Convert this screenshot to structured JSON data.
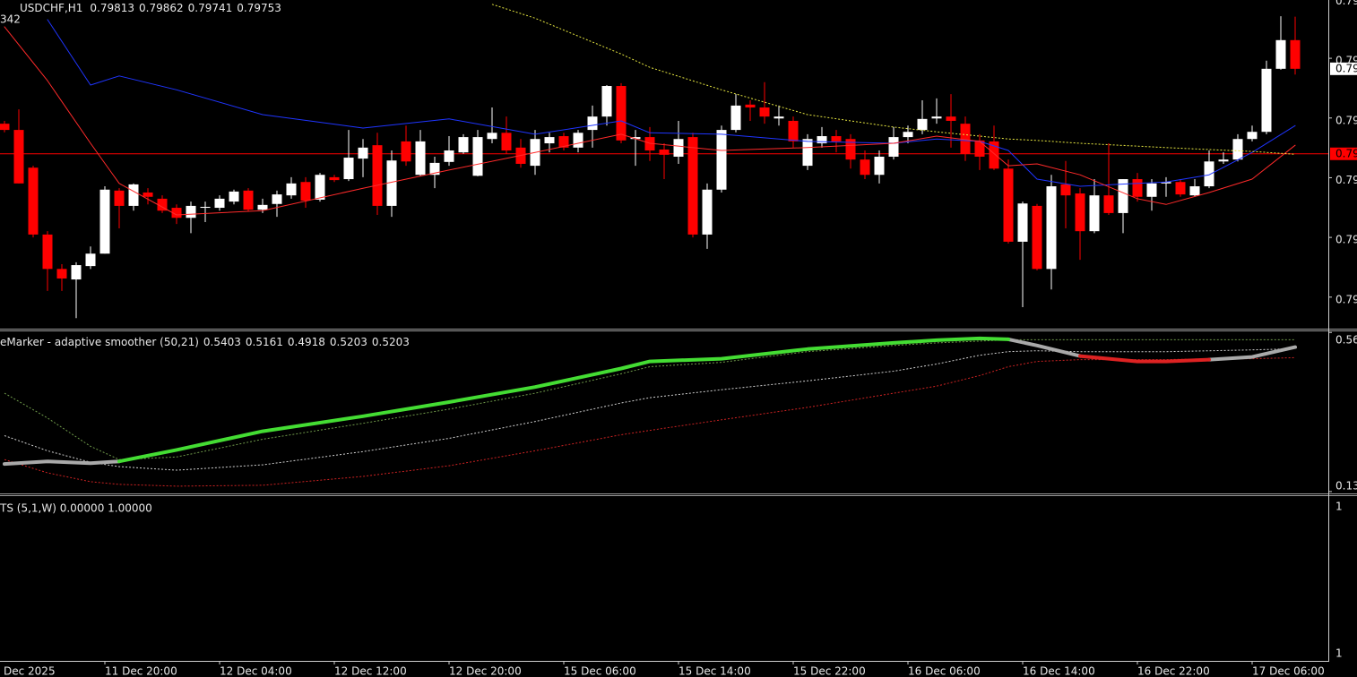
{
  "chart_data": [
    {
      "type": "candlestick",
      "title": "USDCHF,H1",
      "subtitle": "342",
      "open": [
        0.79638,
        0.79625,
        0.79546,
        0.79406,
        0.79334,
        0.79312,
        0.7934,
        0.79366,
        0.79498,
        0.79466,
        0.79494,
        0.79481,
        0.79462,
        0.79441,
        0.79462,
        0.79462,
        0.79475,
        0.79498,
        0.79458,
        0.7947,
        0.79488,
        0.79516,
        0.79479,
        0.79526,
        0.79522,
        0.79565,
        0.79593,
        0.79466,
        0.79601,
        0.79531,
        0.79531,
        0.79558,
        0.79578,
        0.79529,
        0.79606,
        0.79619,
        0.79588,
        0.7955,
        0.79597,
        0.79612,
        0.79588,
        0.79625,
        0.79653,
        0.79717,
        0.79606,
        0.7961,
        0.79584,
        0.79569,
        0.7961,
        0.79406,
        0.795,
        0.79625,
        0.79678,
        0.79672,
        0.79649,
        0.79644,
        0.7955,
        0.79597,
        0.79612,
        0.79606,
        0.79563,
        0.79531,
        0.79569,
        0.7961,
        0.79625,
        0.79649,
        0.79653,
        0.79638,
        0.79603,
        0.79601,
        0.79544,
        0.79391,
        0.79466,
        0.79334,
        0.79511,
        0.79492,
        0.79413,
        0.79488,
        0.79451,
        0.79522,
        0.79485,
        0.79513,
        0.79516,
        0.79488,
        0.79507,
        0.79559,
        0.79563,
        0.79606,
        0.79621,
        0.79753,
        0.79813
      ],
      "high": [
        0.79644,
        0.79668,
        0.7955,
        0.79413,
        0.79344,
        0.79348,
        0.79381,
        0.79507,
        0.79503,
        0.79513,
        0.79503,
        0.79488,
        0.79469,
        0.79475,
        0.79475,
        0.79488,
        0.795,
        0.79503,
        0.79481,
        0.79498,
        0.79526,
        0.79526,
        0.79535,
        0.79531,
        0.79625,
        0.79606,
        0.79619,
        0.79582,
        0.79634,
        0.79625,
        0.79569,
        0.79612,
        0.79616,
        0.79625,
        0.79672,
        0.79653,
        0.79606,
        0.79625,
        0.79619,
        0.79619,
        0.79625,
        0.79676,
        0.79719,
        0.79723,
        0.79625,
        0.79631,
        0.79597,
        0.79644,
        0.79619,
        0.79513,
        0.79634,
        0.797,
        0.79687,
        0.79725,
        0.79676,
        0.79653,
        0.79616,
        0.79631,
        0.79625,
        0.79616,
        0.79582,
        0.79582,
        0.79631,
        0.79634,
        0.79687,
        0.79691,
        0.797,
        0.79653,
        0.79616,
        0.79634,
        0.79563,
        0.79475,
        0.7947,
        0.79531,
        0.7956,
        0.79503,
        0.79522,
        0.79597,
        0.79522,
        0.79535,
        0.79522,
        0.79526,
        0.79522,
        0.79522,
        0.79582,
        0.79578,
        0.79616,
        0.79634,
        0.7977,
        0.79863,
        0.79862
      ],
      "low": [
        0.7962,
        0.79513,
        0.794,
        0.79288,
        0.79288,
        0.79231,
        0.79334,
        0.79366,
        0.79419,
        0.79456,
        0.79469,
        0.79451,
        0.79428,
        0.79409,
        0.79432,
        0.79456,
        0.79469,
        0.79454,
        0.79451,
        0.79443,
        0.79481,
        0.79462,
        0.79475,
        0.79516,
        0.79518,
        0.79526,
        0.79447,
        0.79443,
        0.7955,
        0.79528,
        0.79503,
        0.7955,
        0.79575,
        0.79528,
        0.79597,
        0.79575,
        0.79546,
        0.79531,
        0.79578,
        0.79582,
        0.79578,
        0.79588,
        0.79634,
        0.79597,
        0.7955,
        0.7956,
        0.79522,
        0.79554,
        0.794,
        0.79376,
        0.79494,
        0.7962,
        0.79644,
        0.79638,
        0.79634,
        0.79588,
        0.79541,
        0.79588,
        0.79578,
        0.79544,
        0.79522,
        0.79513,
        0.79563,
        0.79597,
        0.79616,
        0.79638,
        0.79588,
        0.7956,
        0.79541,
        0.79541,
        0.79387,
        0.79254,
        0.79331,
        0.79291,
        0.79419,
        0.79353,
        0.79409,
        0.79447,
        0.79409,
        0.79475,
        0.79456,
        0.79485,
        0.79485,
        0.79485,
        0.79503,
        0.79554,
        0.79559,
        0.79601,
        0.79616,
        0.79751,
        0.79741
      ],
      "close": [
        0.79625,
        0.79513,
        0.79406,
        0.79334,
        0.79314,
        0.79342,
        0.79366,
        0.795,
        0.79466,
        0.79511,
        0.79485,
        0.79456,
        0.79441,
        0.79466,
        0.79464,
        0.79481,
        0.79496,
        0.79458,
        0.79468,
        0.7949,
        0.79513,
        0.79477,
        0.79531,
        0.7952,
        0.79567,
        0.79588,
        0.79466,
        0.79561,
        0.79559,
        0.79601,
        0.79556,
        0.79582,
        0.7961,
        0.7961,
        0.79619,
        0.79582,
        0.79554,
        0.79606,
        0.7961,
        0.79588,
        0.79619,
        0.79653,
        0.79717,
        0.79603,
        0.7961,
        0.79582,
        0.79573,
        0.79606,
        0.79406,
        0.795,
        0.79625,
        0.79676,
        0.79672,
        0.79653,
        0.79653,
        0.79601,
        0.79606,
        0.79612,
        0.79601,
        0.79563,
        0.79531,
        0.79569,
        0.7961,
        0.79621,
        0.79648,
        0.79653,
        0.79644,
        0.79575,
        0.79569,
        0.79544,
        0.79391,
        0.79471,
        0.79334,
        0.79507,
        0.79488,
        0.79413,
        0.79488,
        0.79451,
        0.79522,
        0.79485,
        0.79513,
        0.79516,
        0.7949,
        0.79507,
        0.79559,
        0.79563,
        0.79606,
        0.79621,
        0.79753,
        0.79813,
        0.79753
      ],
      "up_color": "#ffffff",
      "down_color": "#ff0000",
      "xlim": [
        -0.3125,
        92.3125
      ],
      "xticks": [
        {
          "value": -1,
          "label": "Dec 2025"
        },
        {
          "value": 7,
          "label": "11 Dec 20:00"
        },
        {
          "value": 15,
          "label": "12 Dec 04:00"
        },
        {
          "value": 23,
          "label": "12 Dec 12:00"
        },
        {
          "value": 31,
          "label": "12 Dec 20:00"
        },
        {
          "value": 39,
          "label": "15 Dec 06:00"
        },
        {
          "value": 47,
          "label": "15 Dec 14:00"
        },
        {
          "value": 55,
          "label": "15 Dec 22:00"
        },
        {
          "value": 63,
          "label": "16 Dec 06:00"
        },
        {
          "value": 71,
          "label": "16 Dec 14:00"
        },
        {
          "value": 79,
          "label": "16 Dec 22:00"
        },
        {
          "value": 87,
          "label": "17 Dec 06:00"
        }
      ],
      "ylim": [
        0.79209,
        0.79897
      ],
      "yticks": [
        {
          "value": 0.799,
          "label": "0.79"
        },
        {
          "value": 0.79775,
          "label": "0.79"
        },
        {
          "value": 0.7965,
          "label": "0.79"
        },
        {
          "value": 0.79525,
          "label": "0.79"
        },
        {
          "value": 0.794,
          "label": "0.79"
        },
        {
          "value": 0.79275,
          "label": "0.79"
        }
      ],
      "hline": 0.79575,
      "hline_color": "#ff0000",
      "series": [
        {
          "color": "#1f35ff",
          "style": "solid",
          "width": 1,
          "x": [
            3,
            6,
            8,
            12,
            18,
            25,
            31,
            37,
            43,
            45,
            50,
            56,
            62,
            65,
            68,
            70,
            72,
            75,
            79,
            81,
            84,
            87,
            90
          ],
          "values": [
            0.79856,
            0.79719,
            0.79738,
            0.79709,
            0.79657,
            0.79629,
            0.79648,
            0.79616,
            0.79644,
            0.79619,
            0.79616,
            0.79601,
            0.79597,
            0.79606,
            0.79601,
            0.79582,
            0.79522,
            0.79507,
            0.79513,
            0.79516,
            0.79531,
            0.79578,
            0.79634
          ]
        },
        {
          "color": "#ff2a2a",
          "style": "solid",
          "width": 1,
          "x": [
            0,
            3,
            6,
            8,
            12,
            18,
            25,
            31,
            37,
            43,
            45,
            50,
            56,
            62,
            65,
            68,
            70,
            72,
            75,
            79,
            81,
            84,
            87,
            90
          ],
          "values": [
            0.79841,
            0.79728,
            0.79597,
            0.79513,
            0.79447,
            0.79456,
            0.79503,
            0.79541,
            0.79578,
            0.79616,
            0.79597,
            0.79582,
            0.79588,
            0.79597,
            0.79612,
            0.79601,
            0.7955,
            0.79554,
            0.79531,
            0.79481,
            0.79469,
            0.79494,
            0.79522,
            0.79593
          ]
        },
        {
          "color": "#e6e640",
          "style": "dotted",
          "width": 1,
          "x": [
            34,
            37,
            43,
            45,
            50,
            56,
            62,
            65,
            68,
            70,
            72,
            75,
            79,
            81,
            84,
            87,
            90
          ],
          "values": [
            0.79888,
            0.79859,
            0.79784,
            0.79756,
            0.79709,
            0.79657,
            0.79631,
            0.79621,
            0.79612,
            0.79606,
            0.79603,
            0.79597,
            0.79591,
            0.79588,
            0.79584,
            0.7958,
            0.79574
          ]
        }
      ]
    },
    {
      "type": "line",
      "title": "eMarker - adaptive smoother (50,21)",
      "xlim": [
        -0.3125,
        92.3125
      ],
      "ylim": [
        0.125,
        0.563
      ],
      "yticks": [
        0.56,
        0.13
      ],
      "series": [
        {
          "color": "#6f9a4a",
          "style": "dotted",
          "width": 1,
          "x": [
            0,
            3,
            6,
            8,
            12,
            18,
            25,
            31,
            37,
            43,
            45,
            50,
            56,
            62,
            65,
            68,
            70,
            72,
            75,
            79,
            81,
            84,
            87,
            90
          ],
          "values": [
            0.3957,
            0.3288,
            0.2523,
            0.2164,
            0.2236,
            0.2714,
            0.3144,
            0.3527,
            0.3957,
            0.4483,
            0.4674,
            0.4793,
            0.508,
            0.5248,
            0.5319,
            0.5367,
            0.5403,
            0.5403,
            0.5403,
            0.5403,
            0.5403,
            0.5403,
            0.5403,
            0.5403
          ]
        },
        {
          "color": "#cfcfcf",
          "style": "dotted",
          "width": 1,
          "x": [
            0,
            3,
            6,
            8,
            12,
            18,
            25,
            31,
            37,
            43,
            45,
            50,
            56,
            62,
            65,
            68,
            70,
            72,
            75,
            79,
            81,
            84,
            87,
            90
          ],
          "values": [
            0.281,
            0.2403,
            0.2093,
            0.1973,
            0.1878,
            0.2021,
            0.238,
            0.2738,
            0.3192,
            0.3694,
            0.3837,
            0.4053,
            0.4292,
            0.4554,
            0.4746,
            0.4985,
            0.508,
            0.5104,
            0.508,
            0.508,
            0.508,
            0.5104,
            0.5128,
            0.5161
          ]
        },
        {
          "color": "#cc2222",
          "style": "dotted",
          "width": 1,
          "x": [
            0,
            3,
            6,
            8,
            12,
            18,
            25,
            31,
            37,
            43,
            45,
            50,
            56,
            62,
            65,
            68,
            70,
            72,
            75,
            79,
            81,
            84,
            87,
            90
          ],
          "values": [
            0.2164,
            0.1806,
            0.1567,
            0.1495,
            0.1447,
            0.1471,
            0.171,
            0.1997,
            0.2403,
            0.2834,
            0.2953,
            0.324,
            0.3575,
            0.3957,
            0.4148,
            0.4435,
            0.4674,
            0.4817,
            0.4865,
            0.4865,
            0.4865,
            0.4889,
            0.4889,
            0.4918
          ]
        },
        {
          "color": "#a9a9a9",
          "style": "solid",
          "width": 4,
          "x": [
            0,
            3,
            6,
            8,
            12,
            18,
            25,
            31,
            37,
            43,
            45,
            50,
            56,
            62,
            65,
            68,
            70,
            72,
            75,
            79,
            81,
            84,
            87,
            90
          ],
          "values": [
            0.2045,
            0.2117,
            0.2069,
            0.2117,
            null,
            null,
            null,
            null,
            null,
            null,
            null,
            null,
            null,
            null,
            null,
            null,
            0.5415,
            0.5248,
            0.4961,
            null,
            null,
            0.4865,
            0.4937,
            0.5203
          ]
        },
        {
          "color": "#44dd33",
          "style": "solid",
          "width": 4,
          "x": [
            0,
            3,
            6,
            8,
            12,
            18,
            25,
            31,
            37,
            43,
            45,
            50,
            56,
            62,
            65,
            68,
            70,
            72,
            75,
            79,
            81,
            84,
            87,
            90
          ],
          "values": [
            null,
            null,
            null,
            0.2117,
            0.2427,
            0.2929,
            0.3336,
            0.3718,
            0.4124,
            0.4626,
            0.4817,
            0.4889,
            0.5152,
            0.5319,
            0.5391,
            0.5439,
            0.5415,
            null,
            null,
            null,
            null,
            null,
            null,
            null
          ]
        },
        {
          "color": "#dd2222",
          "style": "solid",
          "width": 4,
          "x": [
            0,
            3,
            6,
            8,
            12,
            18,
            25,
            31,
            37,
            43,
            45,
            50,
            56,
            62,
            65,
            68,
            70,
            72,
            75,
            79,
            81,
            84,
            87,
            90
          ],
          "values": [
            null,
            null,
            null,
            null,
            null,
            null,
            null,
            null,
            null,
            null,
            null,
            null,
            null,
            null,
            null,
            null,
            null,
            null,
            0.4961,
            0.4817,
            0.4817,
            0.4865,
            null,
            null
          ]
        }
      ]
    }
  ],
  "panel3": {
    "title": "TS (5,1,W) 0.00000 1.00000",
    "axis_labels": [
      "1",
      "1"
    ]
  }
}
